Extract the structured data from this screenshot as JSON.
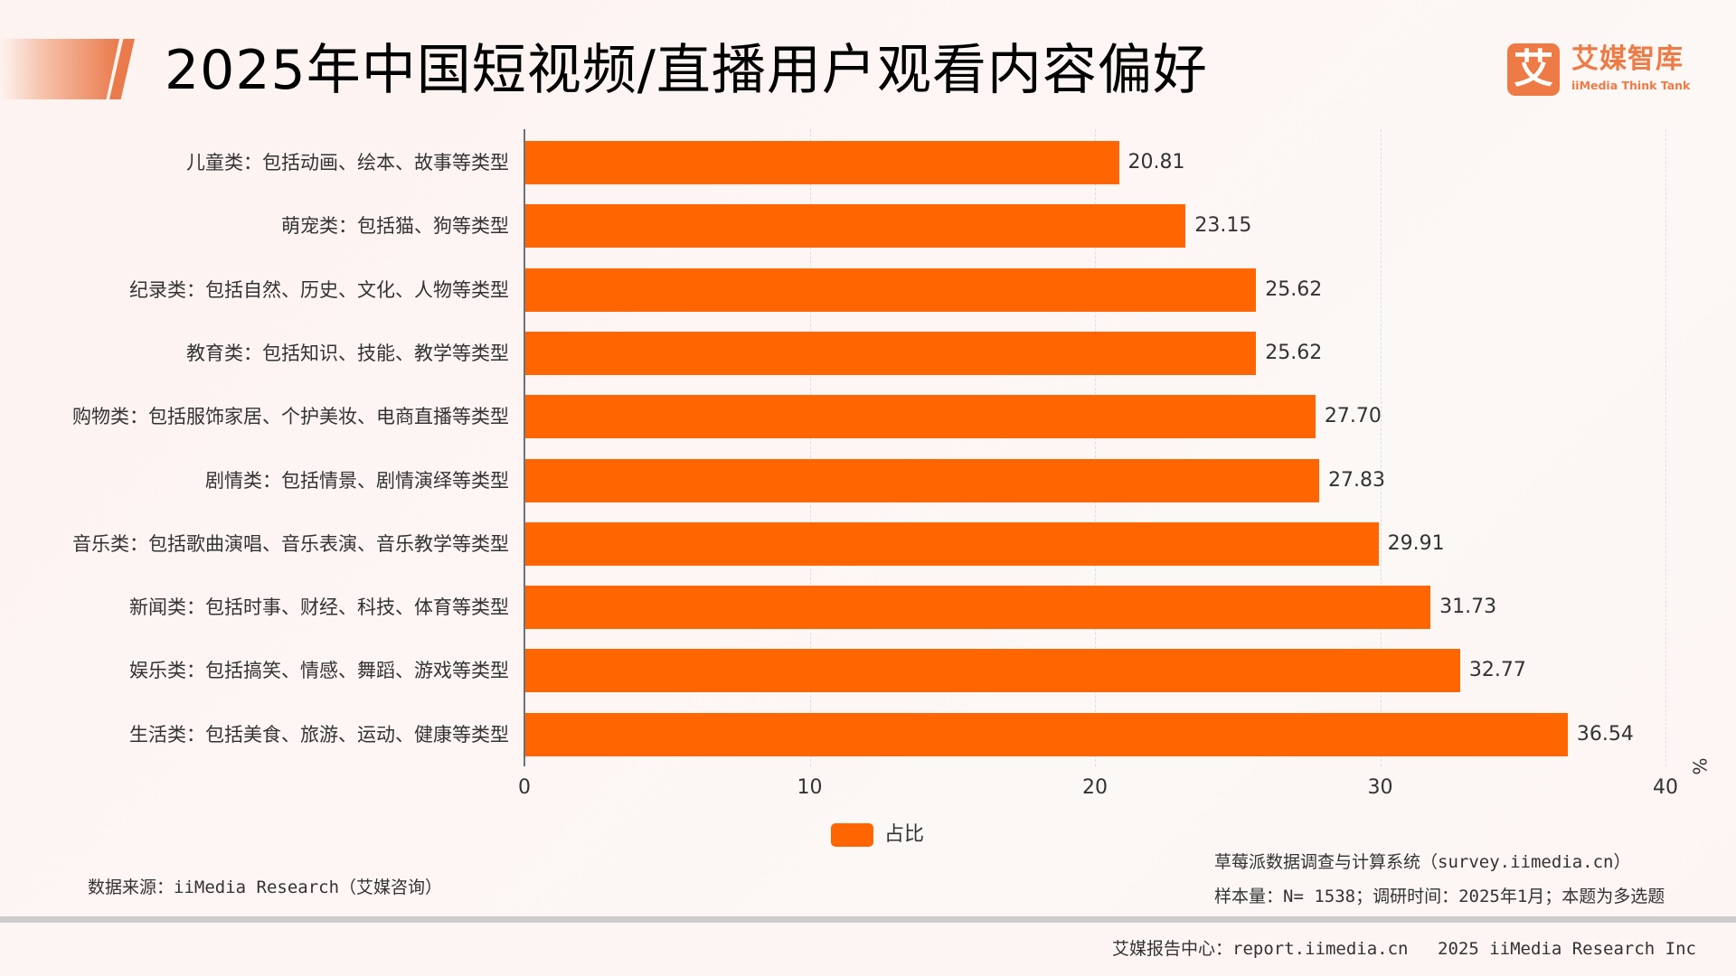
{
  "header": {
    "title": "2025年中国短视频/直播用户观看内容偏好",
    "logo": {
      "icon_glyph": "艾",
      "icon_name": "iimedia-logo-icon",
      "name_cn": "艾媒智库",
      "name_en": "iiMedia Think Tank",
      "color": "#EE7A45"
    }
  },
  "colors": {
    "bar": "#FF6501",
    "accent": "#EA7A4B",
    "background": "#FDF5F3",
    "divider": "#CCCCCC"
  },
  "chart_data": {
    "type": "bar",
    "orientation": "horizontal",
    "title": "2025年中国短视频/直播用户观看内容偏好",
    "categories": [
      "儿童类：包括动画、绘本、故事等类型",
      "萌宠类：包括猫、狗等类型",
      "纪录类：包括自然、历史、文化、人物等类型",
      "教育类：包括知识、技能、教学等类型",
      "购物类：包括服饰家居、个护美妆、电商直播等类型",
      "剧情类：包括情景、剧情演绎等类型",
      "音乐类：包括歌曲演唱、音乐表演、音乐教学等类型",
      "新闻类：包括时事、财经、科技、体育等类型",
      "娱乐类：包括搞笑、情感、舞蹈、游戏等类型",
      "生活类：包括美食、旅游、运动、健康等类型"
    ],
    "series": [
      {
        "name": "占比",
        "color": "#FF6501",
        "values": [
          20.81,
          23.15,
          25.62,
          25.62,
          27.7,
          27.83,
          29.91,
          31.73,
          32.77,
          36.54
        ],
        "labels": [
          "20.81",
          "23.15",
          "25.62",
          "25.62",
          "27.70",
          "27.83",
          "29.91",
          "31.73",
          "32.77",
          "36.54"
        ]
      }
    ],
    "xlabel": "%",
    "ylabel": "",
    "xlim": [
      0,
      40
    ],
    "xticks": [
      "0",
      "10",
      "20",
      "30",
      "40"
    ],
    "grid": "vertical dashed",
    "legend": {
      "position": "bottom-center",
      "entries": [
        "占比"
      ]
    }
  },
  "notes": {
    "source": "数据来源：iiMedia Research（艾媒咨询）",
    "system": "草莓派数据调查与计算系统（survey.iimedia.cn）",
    "sample": "样本量：N= 1538；调研时间：2025年1月；本题为多选题"
  },
  "footer": {
    "report_center": "艾媒报告中心：report.iimedia.cn",
    "copyright": "2025 iiMedia Research Inc"
  }
}
